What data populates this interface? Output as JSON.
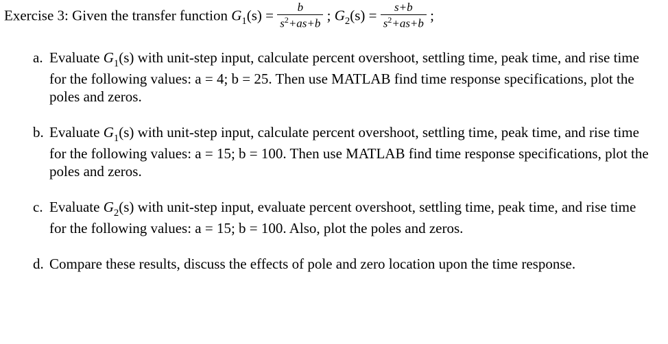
{
  "colors": {
    "text": "#000000",
    "background": "#ffffff"
  },
  "typography": {
    "body_fontsize_pt": 16,
    "frac_fontsize_pt": 13,
    "font_family": "Times New Roman"
  },
  "header": {
    "prefix": "Exercise 3: Given the transfer function ",
    "g1_label": "G",
    "g1_sub": "1",
    "g1_arg": "(s) = ",
    "frac1_num": "b",
    "frac1_den_pre": "s",
    "frac1_den_sup": "2",
    "frac1_den_post": "+as+b",
    "sep1": " ; ",
    "g2_label": "G",
    "g2_sub": "2",
    "g2_arg": "(s) = ",
    "frac2_num": "s+b",
    "frac2_den_pre": "s",
    "frac2_den_sup": "2",
    "frac2_den_post": "+as+b",
    "tail": " ;"
  },
  "parts": {
    "a": {
      "marker": "a.",
      "pre": "Evaluate ",
      "g_label": "G",
      "g_sub": "1",
      "g_arg": "(s)",
      "post": " with unit-step input, calculate percent overshoot, settling time, peak time, and rise time for the following values: a = 4; b = 25. Then use MATLAB find time response specifications, plot the poles and zeros."
    },
    "b": {
      "marker": "b.",
      "pre": "Evaluate ",
      "g_label": "G",
      "g_sub": "1",
      "g_arg": "(s)",
      "post": " with unit-step input, calculate percent overshoot, settling time, peak time, and rise time for the following values: a = 15; b = 100. Then use MATLAB find time response specifications, plot the poles and zeros."
    },
    "c": {
      "marker": "c.",
      "pre": "Evaluate ",
      "g_label": "G",
      "g_sub": "2",
      "g_arg": "(s)",
      "post": " with unit-step input, evaluate percent overshoot, settling time, peak time, and rise time for the following values: a = 15; b = 100. Also, plot the poles and zeros."
    },
    "d": {
      "marker": "d.",
      "text": "Compare these results, discuss the effects of pole and zero location upon the time response."
    }
  }
}
